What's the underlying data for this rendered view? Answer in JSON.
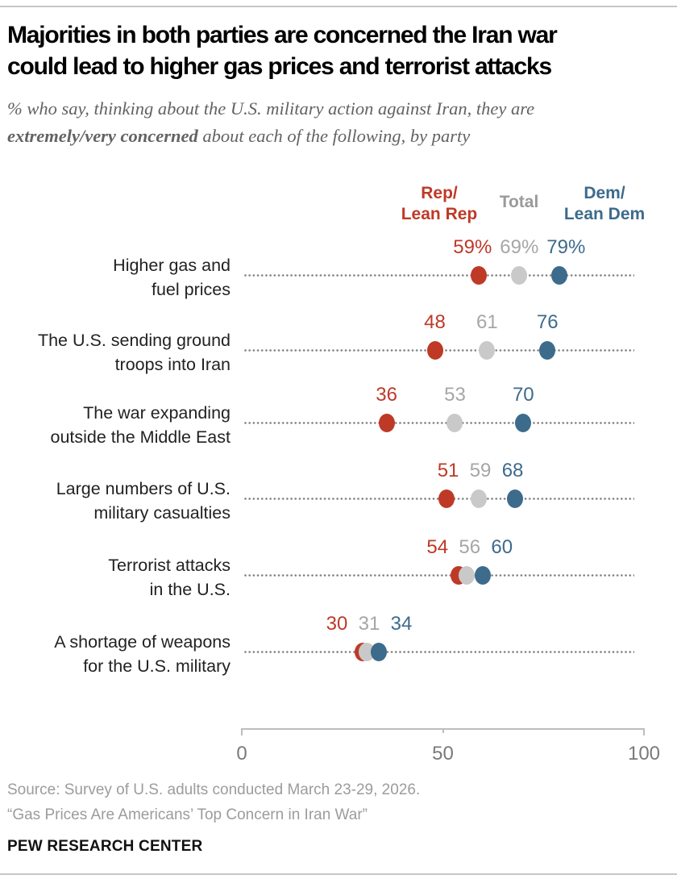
{
  "header": {
    "title_line1": "Majorities in both parties are concerned the Iran war",
    "title_line2": "could lead to higher gas prices and terrorist attacks",
    "subtitle_line1": "% who say, thinking about the U.S. military action against Iran, they are",
    "subtitle_bold": "extremely/very concerned",
    "subtitle_rest": " about each of the following, by party"
  },
  "legend": {
    "rep": {
      "lines": [
        "Rep/",
        "Lean Rep"
      ],
      "color": "#bf3927"
    },
    "total": {
      "label": "Total",
      "color": "#9a9a9a"
    },
    "dem": {
      "lines": [
        "Dem/",
        "Lean Dem"
      ],
      "color": "#3d6b8c"
    }
  },
  "chart_data": {
    "type": "dot-plot",
    "title": "Majorities in both parties are concerned the Iran war could lead to higher gas prices and terrorist attacks",
    "subtitle": "% who say, thinking about the U.S. military action against Iran, they are extremely/very concerned about each of the following, by party",
    "xlim": [
      0,
      100
    ],
    "x_ticks": [
      {
        "label": "0",
        "value": 0
      },
      {
        "label": "50",
        "value": 50
      },
      {
        "label": "100",
        "value": 100
      }
    ],
    "grid": "dotted-row-tracks",
    "legend_position": "top",
    "categories": [
      {
        "lines": [
          "Higher gas and",
          "fuel prices"
        ],
        "display": [
          "59%",
          "69%",
          "79%"
        ]
      },
      {
        "lines": [
          "The U.S. sending ground",
          "troops into Iran"
        ],
        "display": [
          "48",
          "61",
          "76"
        ]
      },
      {
        "lines": [
          "The war expanding",
          "outside the Middle East"
        ],
        "display": [
          "36",
          "53",
          "70"
        ]
      },
      {
        "lines": [
          "Large numbers of U.S.",
          "military casualties"
        ],
        "display": [
          "51",
          "59",
          "68"
        ]
      },
      {
        "lines": [
          "Terrorist attacks",
          "in the U.S."
        ],
        "display": [
          "54",
          "56",
          "60"
        ]
      },
      {
        "lines": [
          "A shortage of weapons",
          "for the U.S. military"
        ],
        "display": [
          "30",
          "31",
          "34"
        ]
      }
    ],
    "series": [
      {
        "name": "Rep/Lean Rep",
        "key": "rep",
        "dot_color": "#bf3927",
        "text_color": "#bf3927",
        "values": [
          59,
          48,
          36,
          51,
          54,
          30
        ]
      },
      {
        "name": "Total",
        "key": "total",
        "dot_color": "#c9c9c9",
        "text_color": "#a6a6a6",
        "values": [
          69,
          61,
          53,
          59,
          56,
          31
        ]
      },
      {
        "name": "Dem/Lean Dem",
        "key": "dem",
        "dot_color": "#3d6b8c",
        "text_color": "#3d6b8c",
        "values": [
          79,
          76,
          70,
          68,
          60,
          34
        ]
      }
    ],
    "track_color": "#808080",
    "axis_color": "#bdbdbd",
    "axis_label_color": "#7a7a7a"
  },
  "footer": {
    "source_line1": "Source: Survey of U.S. adults conducted March 23-29, 2026.",
    "source_line2": "“Gas Prices Are Americans’ Top Concern in Iran War”",
    "brand": "PEW RESEARCH CENTER"
  }
}
